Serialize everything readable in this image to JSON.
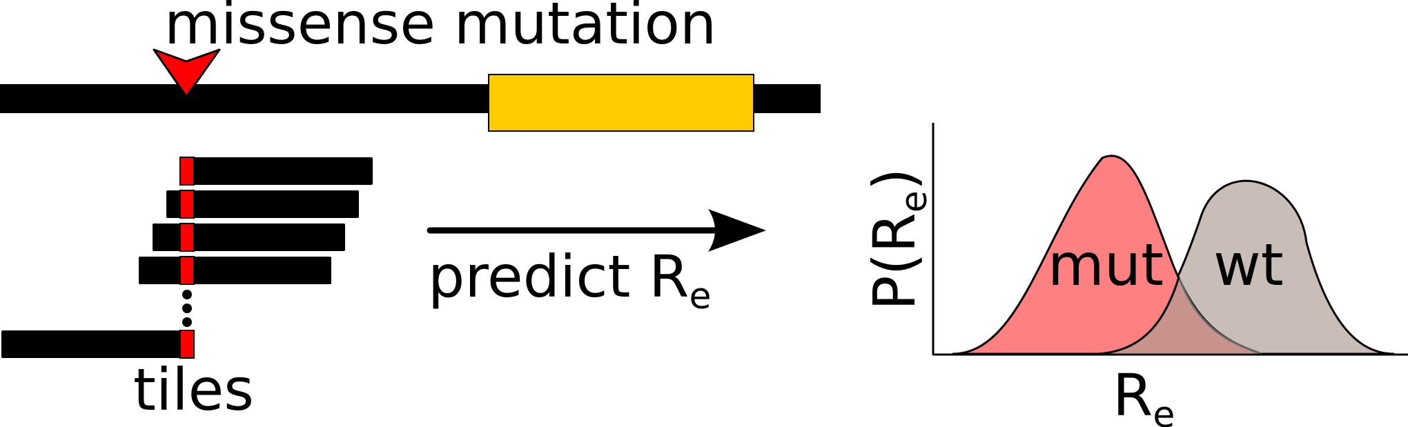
{
  "labels": {
    "mutation_title": "missense mutation",
    "tiles": "tiles",
    "predict": "predict R",
    "predict_sub": "e",
    "distribution_names": {
      "mutant": "mut",
      "wildtype": "wt"
    },
    "y_axis": "P(R",
    "y_axis_sub": "e",
    "y_axis_close": ")",
    "x_axis": "R",
    "x_axis_sub": "e"
  },
  "colors": {
    "sequence": "#000000",
    "gene_region": "#FFCC00",
    "mutation_marker": "#FF0000",
    "mutant_fill": "#FF8080",
    "wildtype_fill": "#C8BEB7",
    "overlap_fill": "#C8938C"
  },
  "icons": {
    "mutation_marker": "red-down-triangle",
    "continuation": "vertical-ellipsis",
    "direction": "right-arrow"
  },
  "tile_count_shown": 5
}
